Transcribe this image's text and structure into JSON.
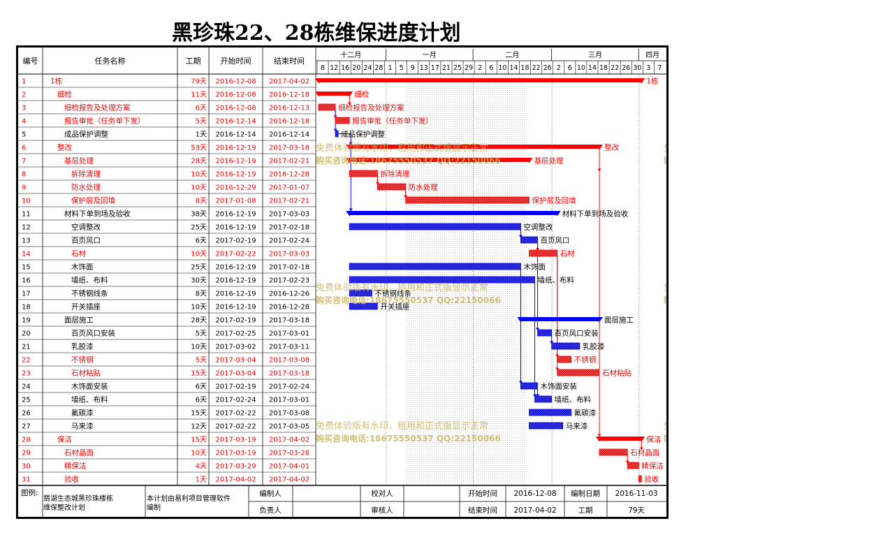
{
  "title": "黑珍珠22、28栋维保进度计划",
  "columns": {
    "id": "编号",
    "name": "任务名称",
    "duration": "工期",
    "start": "开始时间",
    "finish": "结束时间"
  },
  "months": [
    "十二月",
    "一月",
    "二月",
    "三月",
    "四月"
  ],
  "days": [
    "8",
    "12",
    "16",
    "20",
    "24",
    "28",
    "1",
    "5",
    "9",
    "13",
    "17",
    "21",
    "25",
    "29",
    "2",
    "6",
    "10",
    "14",
    "18",
    "22",
    "26",
    "2",
    "6",
    "10",
    "14",
    "18",
    "22",
    "26",
    "30",
    "3",
    "7"
  ],
  "colors": {
    "red": "#ff0000",
    "blue": "#0000ff",
    "watermark": "#c8b464",
    "grid": "#000000"
  },
  "tasks": [
    {
      "id": "1",
      "name": "1栋",
      "dur": "79天",
      "start": "2016-12-08",
      "finish": "2017-04-02",
      "level": 0,
      "color": "red",
      "summary": true,
      "s": 0,
      "e": 115
    },
    {
      "id": "2",
      "name": "细检",
      "dur": "11天",
      "start": "2016-12-08",
      "finish": "2016-12-18",
      "level": 1,
      "color": "red",
      "summary": true,
      "s": 0,
      "e": 11
    },
    {
      "id": "3",
      "name": "细检报告及处理方案",
      "dur": "6天",
      "start": "2016-12-08",
      "finish": "2016-12-13",
      "level": 2,
      "color": "red",
      "summary": false,
      "s": 0,
      "e": 6
    },
    {
      "id": "4",
      "name": "报告审批（任务单下发）",
      "dur": "5天",
      "start": "2016-12-14",
      "finish": "2016-12-18",
      "level": 2,
      "color": "red",
      "summary": false,
      "s": 6,
      "e": 11
    },
    {
      "id": "5",
      "name": "成品保护调整",
      "dur": "1天",
      "start": "2016-12-14",
      "finish": "2016-12-14",
      "level": 2,
      "color": "black",
      "bar": "blue",
      "summary": false,
      "s": 6,
      "e": 7
    },
    {
      "id": "6",
      "name": "整改",
      "dur": "53天",
      "start": "2016-12-19",
      "finish": "2017-03-18",
      "level": 1,
      "color": "red",
      "summary": true,
      "s": 11,
      "e": 100
    },
    {
      "id": "7",
      "name": "基层处理",
      "dur": "28天",
      "start": "2016-12-19",
      "finish": "2017-02-21",
      "level": 2,
      "color": "red",
      "summary": true,
      "s": 11,
      "e": 75
    },
    {
      "id": "8",
      "name": "拆除清理",
      "dur": "10天",
      "start": "2016-12-19",
      "finish": "2016-12-28",
      "level": 3,
      "color": "red",
      "summary": false,
      "s": 11,
      "e": 21
    },
    {
      "id": "9",
      "name": "防水处理",
      "dur": "10天",
      "start": "2016-12-29",
      "finish": "2017-01-07",
      "level": 3,
      "color": "red",
      "summary": false,
      "s": 21,
      "e": 31
    },
    {
      "id": "10",
      "name": "保护层及回填",
      "dur": "8天",
      "start": "2017-01-08",
      "finish": "2017-02-21",
      "level": 3,
      "color": "red",
      "summary": false,
      "s": 31,
      "e": 75
    },
    {
      "id": "11",
      "name": "材料下单到场及验收",
      "dur": "38天",
      "start": "2016-12-19",
      "finish": "2017-03-03",
      "level": 2,
      "color": "black",
      "bar": "blue",
      "summary": true,
      "s": 11,
      "e": 85
    },
    {
      "id": "12",
      "name": "空调整改",
      "dur": "25天",
      "start": "2016-12-19",
      "finish": "2017-02-18",
      "level": 3,
      "color": "black",
      "bar": "blue",
      "summary": false,
      "s": 11,
      "e": 72
    },
    {
      "id": "13",
      "name": "百页风口",
      "dur": "6天",
      "start": "2017-02-19",
      "finish": "2017-02-24",
      "level": 3,
      "color": "black",
      "bar": "blue",
      "summary": false,
      "s": 72,
      "e": 78
    },
    {
      "id": "14",
      "name": "石材",
      "dur": "10天",
      "start": "2017-02-22",
      "finish": "2017-03-03",
      "level": 3,
      "color": "red",
      "summary": false,
      "s": 75,
      "e": 85
    },
    {
      "id": "15",
      "name": "木饰面",
      "dur": "25天",
      "start": "2016-12-19",
      "finish": "2017-02-18",
      "level": 3,
      "color": "black",
      "bar": "blue",
      "summary": false,
      "s": 11,
      "e": 72
    },
    {
      "id": "16",
      "name": "墙纸、布料",
      "dur": "30天",
      "start": "2016-12-19",
      "finish": "2017-02-23",
      "level": 3,
      "color": "black",
      "bar": "blue",
      "summary": false,
      "s": 11,
      "e": 77
    },
    {
      "id": "17",
      "name": "不锈钢线条",
      "dur": "8天",
      "start": "2016-12-19",
      "finish": "2016-12-26",
      "level": 3,
      "color": "black",
      "bar": "blue",
      "summary": false,
      "s": 11,
      "e": 19
    },
    {
      "id": "18",
      "name": "开关插座",
      "dur": "10天",
      "start": "2016-12-19",
      "finish": "2016-12-28",
      "level": 3,
      "color": "black",
      "bar": "blue",
      "summary": false,
      "s": 11,
      "e": 21
    },
    {
      "id": "19",
      "name": "面层施工",
      "dur": "28天",
      "start": "2017-02-19",
      "finish": "2017-03-18",
      "level": 2,
      "color": "black",
      "bar": "blue",
      "summary": true,
      "s": 72,
      "e": 100
    },
    {
      "id": "20",
      "name": "百页风口安装",
      "dur": "5天",
      "start": "2017-02-25",
      "finish": "2017-03-01",
      "level": 3,
      "color": "black",
      "bar": "blue",
      "summary": false,
      "s": 78,
      "e": 83
    },
    {
      "id": "21",
      "name": "乳胶漆",
      "dur": "10天",
      "start": "2017-03-02",
      "finish": "2017-03-11",
      "level": 3,
      "color": "black",
      "bar": "blue",
      "summary": false,
      "s": 83,
      "e": 93
    },
    {
      "id": "22",
      "name": "不锈钢",
      "dur": "5天",
      "start": "2017-03-04",
      "finish": "2017-03-08",
      "level": 3,
      "color": "red",
      "summary": false,
      "s": 85,
      "e": 90
    },
    {
      "id": "23",
      "name": "石材粘贴",
      "dur": "15天",
      "start": "2017-03-04",
      "finish": "2017-03-18",
      "level": 3,
      "color": "red",
      "summary": false,
      "s": 85,
      "e": 100
    },
    {
      "id": "24",
      "name": "木饰面安装",
      "dur": "6天",
      "start": "2017-02-19",
      "finish": "2017-02-24",
      "level": 3,
      "color": "black",
      "bar": "blue",
      "summary": false,
      "s": 72,
      "e": 78
    },
    {
      "id": "25",
      "name": "墙纸、布料",
      "dur": "6天",
      "start": "2017-02-24",
      "finish": "2017-03-01",
      "level": 3,
      "color": "black",
      "bar": "blue",
      "summary": false,
      "s": 77,
      "e": 83
    },
    {
      "id": "26",
      "name": "氟碳漆",
      "dur": "15天",
      "start": "2017-02-22",
      "finish": "2017-03-08",
      "level": 3,
      "color": "black",
      "bar": "blue",
      "summary": false,
      "s": 75,
      "e": 90
    },
    {
      "id": "27",
      "name": "马来漆",
      "dur": "12天",
      "start": "2017-02-22",
      "finish": "2017-03-05",
      "level": 3,
      "color": "black",
      "bar": "blue",
      "summary": false,
      "s": 75,
      "e": 87
    },
    {
      "id": "28",
      "name": "保洁",
      "dur": "15天",
      "start": "2017-03-19",
      "finish": "2017-04-02",
      "level": 1,
      "color": "red",
      "summary": true,
      "s": 100,
      "e": 115
    },
    {
      "id": "29",
      "name": "石材晶面",
      "dur": "10天",
      "start": "2017-03-19",
      "finish": "2017-03-28",
      "level": 2,
      "color": "red",
      "summary": false,
      "s": 100,
      "e": 110
    },
    {
      "id": "30",
      "name": "精保洁",
      "dur": "4天",
      "start": "2017-03-29",
      "finish": "2017-04-01",
      "level": 2,
      "color": "red",
      "summary": false,
      "s": 110,
      "e": 114
    },
    {
      "id": "31",
      "name": "验收",
      "dur": "1天",
      "start": "2017-04-02",
      "finish": "2017-04-02",
      "level": 2,
      "color": "red",
      "summary": false,
      "s": 114,
      "e": 115
    }
  ],
  "watermark": {
    "line1": "免费体验版有水印，租用和正式版显示正常",
    "line2": "购买咨询电话:18675550537 QQ:22150066"
  },
  "footer": {
    "legend_label": "图例:",
    "project": "翡湖生态城黑珍珠楼栋维保整改计划",
    "software": "本计划由易利项目管理软件编制",
    "compiler_label": "编制人",
    "checker_label": "校对人",
    "start_label": "开始时间",
    "start_value": "2016-12-08",
    "date_label": "编制日期",
    "date_value": "2016-11-03",
    "owner_label": "负责人",
    "reviewer_label": "审核人",
    "finish_label": "结束时间",
    "finish_value": "2017-04-02",
    "duration_label": "工期",
    "duration_value": "79天"
  }
}
